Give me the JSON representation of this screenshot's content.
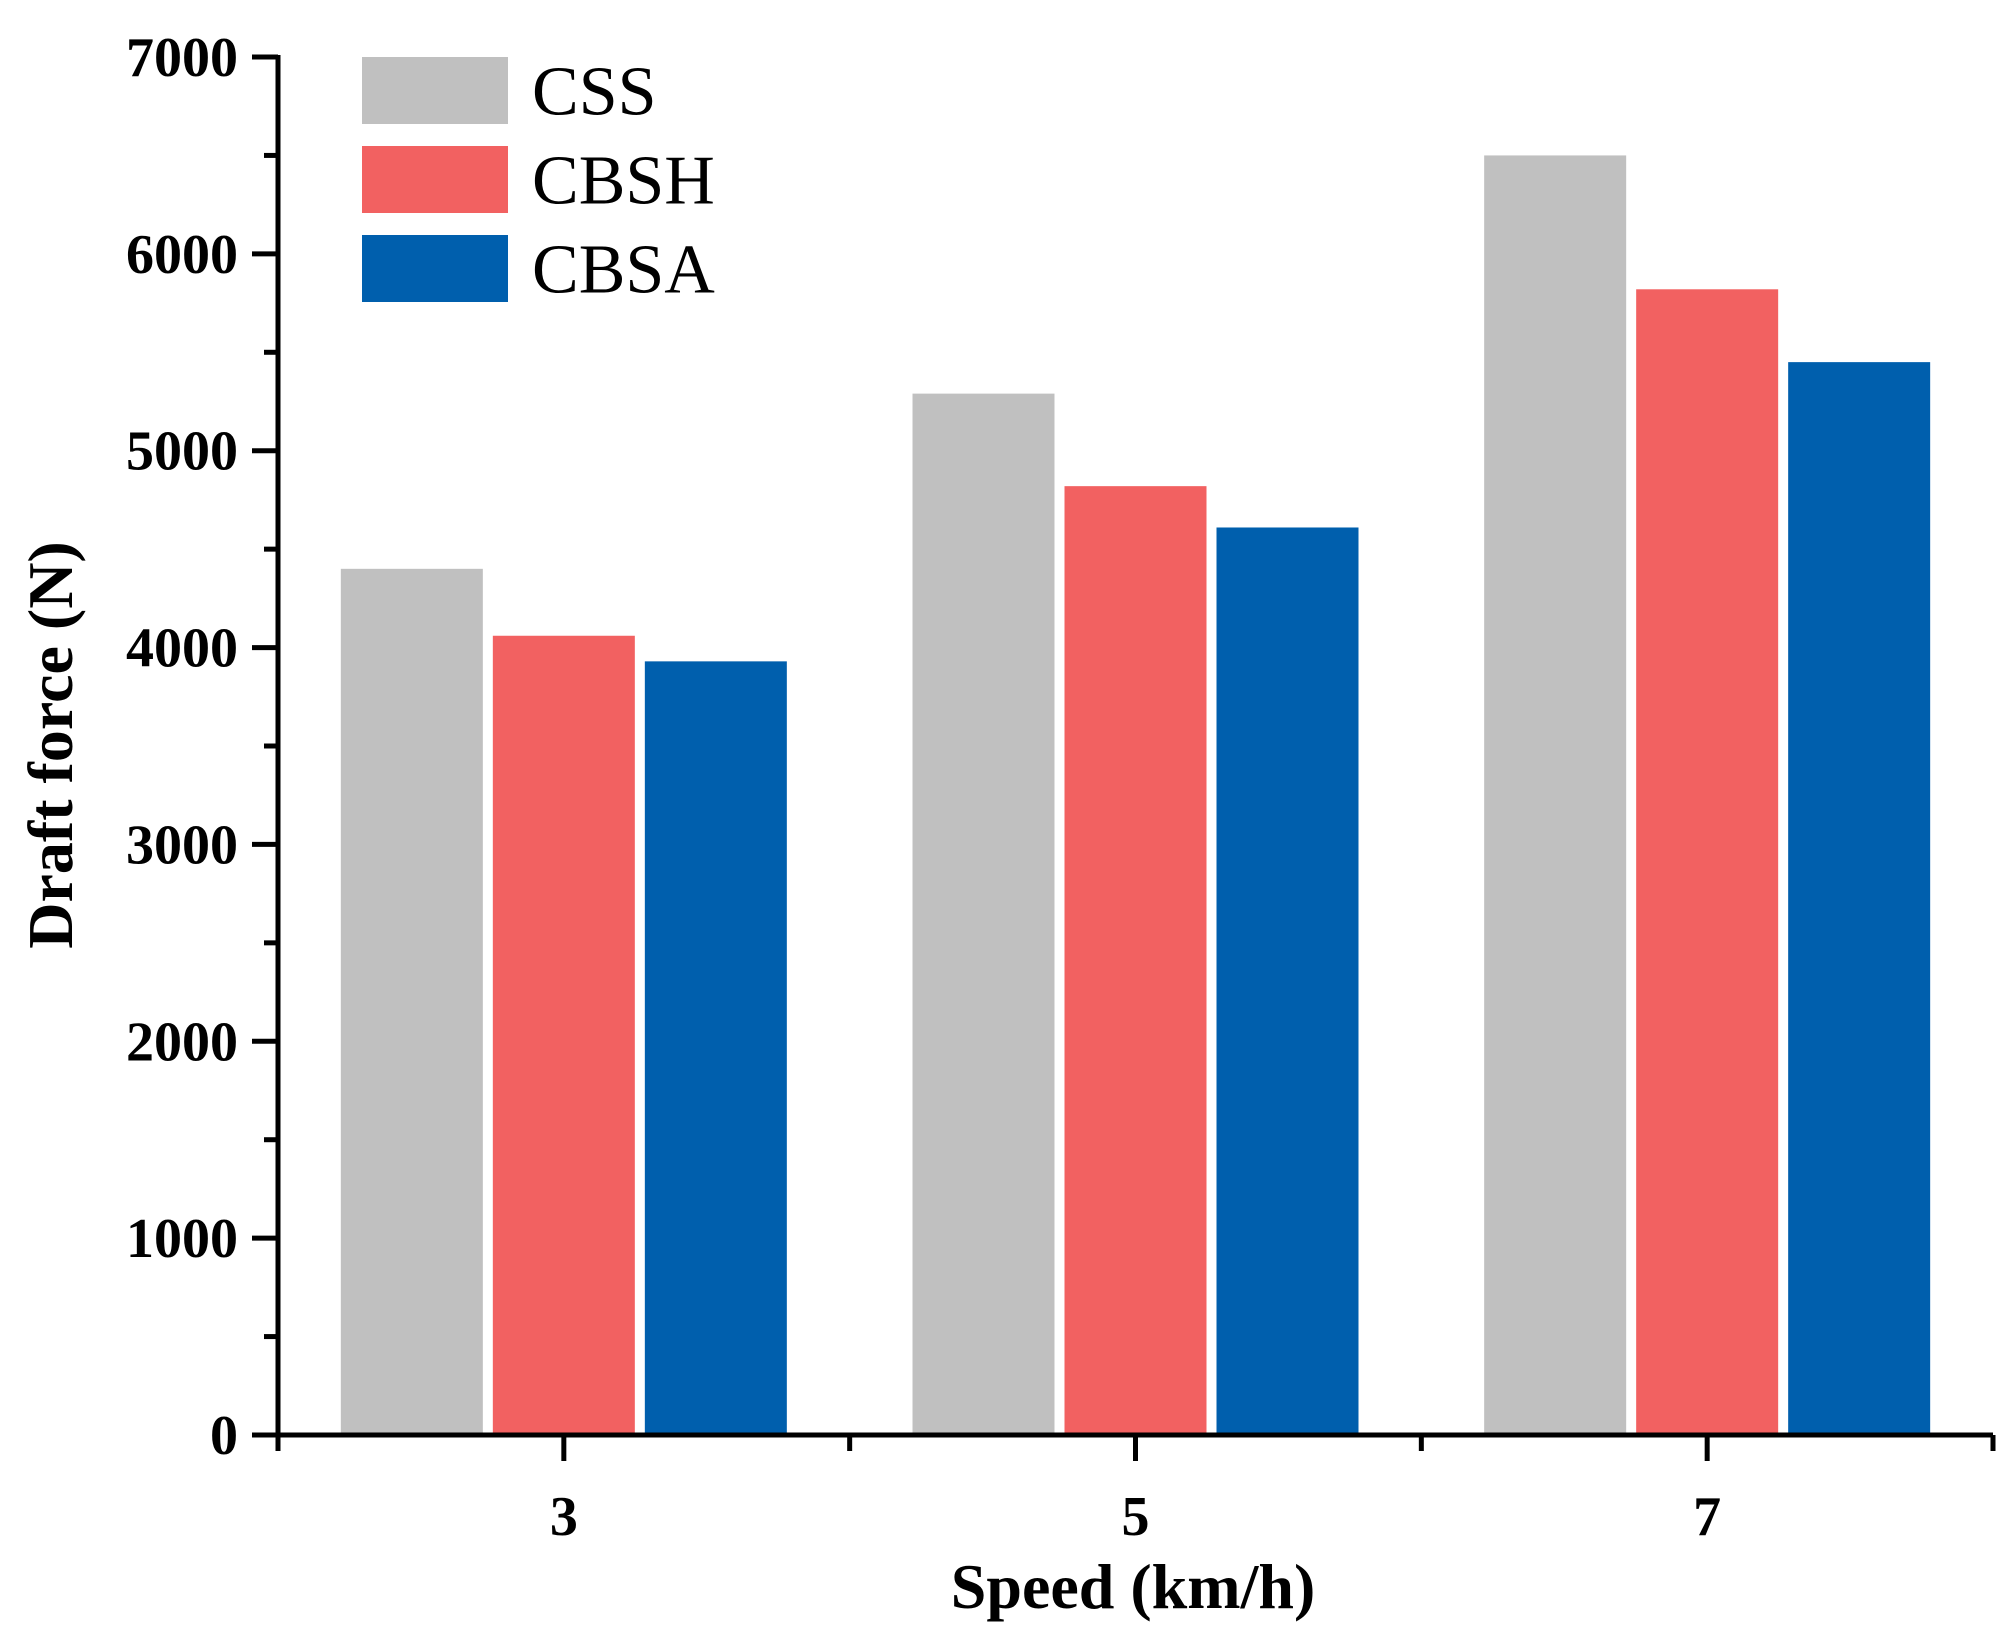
{
  "chart_data": {
    "type": "bar",
    "title": "",
    "xlabel": "Speed (km/h)",
    "ylabel": "Draft force (N)",
    "categories": [
      "3",
      "5",
      "7"
    ],
    "series": [
      {
        "name": "CSS",
        "color": "#c0c0c0",
        "values": [
          4400,
          5290,
          6500
        ]
      },
      {
        "name": "CBSH",
        "color": "#f26161",
        "values": [
          4060,
          4820,
          5820
        ]
      },
      {
        "name": "CBSA",
        "color": "#005fad",
        "values": [
          3930,
          4610,
          5450
        ]
      }
    ],
    "ylim": [
      0,
      7000
    ],
    "yticks": [
      "0",
      "1000",
      "2000",
      "3000",
      "4000",
      "5000",
      "6000",
      "7000"
    ],
    "grid": false,
    "legend_position": "top-left"
  }
}
